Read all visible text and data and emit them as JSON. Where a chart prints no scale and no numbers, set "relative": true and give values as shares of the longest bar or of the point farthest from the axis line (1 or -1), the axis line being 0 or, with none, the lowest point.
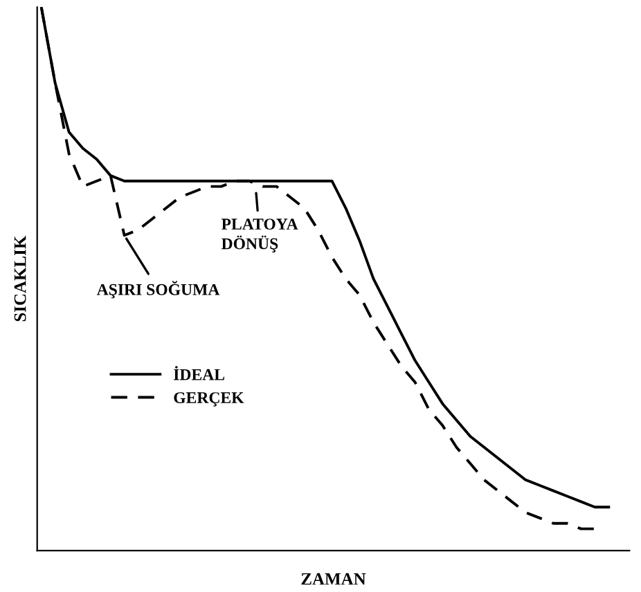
{
  "chart_data": {
    "type": "line",
    "relative": true,
    "xlabel": "ZAMAN",
    "ylabel": "SICAKLIK",
    "categories": [
      null,
      null,
      null,
      null,
      null,
      null,
      null,
      null,
      null,
      null,
      null,
      null,
      null,
      null,
      null,
      null,
      null,
      null,
      null,
      null,
      null,
      null,
      null,
      null,
      null,
      null,
      null,
      null,
      null,
      null,
      null,
      null,
      null,
      null,
      null,
      null,
      null,
      null,
      null,
      null,
      null,
      null
    ],
    "series": [
      {
        "name": "İDEAL",
        "color": "#000000",
        "line_style": "solid",
        "values": [
          1.0,
          0.86,
          0.77,
          0.74,
          0.72,
          0.69,
          0.68,
          0.68,
          0.68,
          0.68,
          0.68,
          0.68,
          0.68,
          0.68,
          0.68,
          0.68,
          0.68,
          0.68,
          0.68,
          0.68,
          0.68,
          0.68,
          0.63,
          0.57,
          0.5,
          0.45,
          0.4,
          0.35,
          0.31,
          0.27,
          0.24,
          0.21,
          0.19,
          0.17,
          0.15,
          0.13,
          0.12,
          0.11,
          0.1,
          0.09,
          0.08,
          0.08
        ]
      },
      {
        "name": "GERÇEK",
        "color": "#000000",
        "line_style": "dashed",
        "values": [
          1.0,
          0.86,
          0.73,
          0.67,
          0.68,
          0.69,
          0.58,
          0.59,
          0.61,
          0.63,
          0.65,
          0.66,
          0.67,
          0.67,
          0.68,
          0.68,
          0.67,
          0.67,
          0.65,
          0.63,
          0.59,
          0.54,
          0.5,
          0.47,
          0.42,
          0.38,
          0.34,
          0.31,
          0.26,
          0.23,
          0.19,
          0.16,
          0.13,
          0.11,
          0.09,
          0.07,
          0.06,
          0.05,
          0.05,
          0.04,
          0.04,
          null
        ]
      }
    ],
    "annotations": [
      "AŞIRI SOĞUMA",
      "PLATOYA\nDÖNÜŞ"
    ],
    "legend": "center left",
    "grid": false,
    "marker": "none"
  }
}
